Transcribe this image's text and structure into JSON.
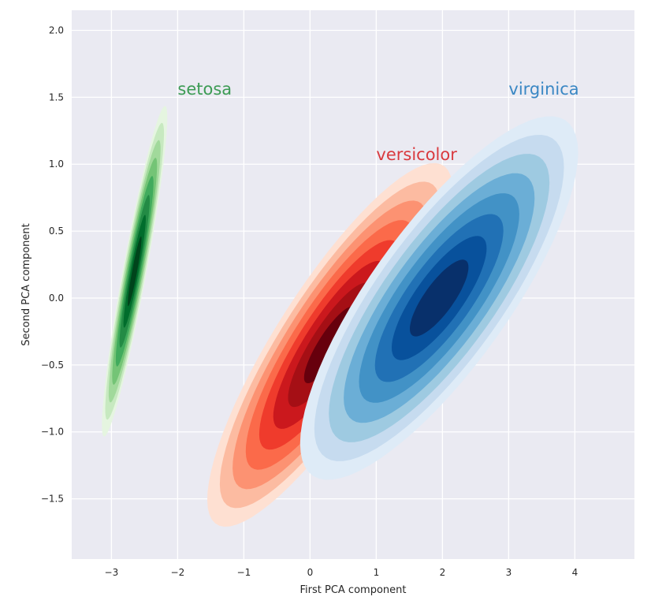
{
  "chart_data": {
    "type": "kde_contour",
    "title": "",
    "xlabel": "First PCA component",
    "ylabel": "Second PCA component",
    "xlim": [
      -3.6,
      4.9
    ],
    "ylim": [
      -1.95,
      2.15
    ],
    "xticks": [
      -3,
      -2,
      -1,
      0,
      1,
      2,
      3,
      4
    ],
    "yticks": [
      -1.5,
      -1.0,
      -0.5,
      0.0,
      0.5,
      1.0,
      1.5,
      2.0
    ],
    "xtick_labels": [
      "−3",
      "−2",
      "−1",
      "0",
      "1",
      "2",
      "3",
      "4"
    ],
    "ytick_labels": [
      "−1.5",
      "−1.0",
      "−0.5",
      "0.0",
      "0.5",
      "1.0",
      "1.5",
      "2.0"
    ],
    "grid": true,
    "background": "#eaeaf2",
    "series": [
      {
        "name": "setosa",
        "cmap": "Greens",
        "colors": [
          "#e5f5e0",
          "#c7e9c0",
          "#a1d99b",
          "#74c476",
          "#41ab5d",
          "#238b45",
          "#006d2c",
          "#00441b"
        ],
        "center": [
          -2.65,
          0.2
        ],
        "std": [
          0.2,
          0.5
        ],
        "rho": 0.93,
        "label_pos": [
          -2.0,
          1.52
        ]
      },
      {
        "name": "versicolor",
        "cmap": "Reds",
        "colors": [
          "#fee0d2",
          "#fcbba1",
          "#fc9272",
          "#fb6a4a",
          "#ef3b2c",
          "#cb181d",
          "#a50f15",
          "#67000d"
        ],
        "center": [
          0.3,
          -0.35
        ],
        "std": [
          0.75,
          0.55
        ],
        "rho": 0.85,
        "label_pos": [
          1.0,
          1.03
        ]
      },
      {
        "name": "virginica",
        "cmap": "Blues",
        "colors": [
          "#deebf7",
          "#c6dbef",
          "#9ecae1",
          "#6baed6",
          "#4292c6",
          "#2171b5",
          "#08519c",
          "#08306b"
        ],
        "center": [
          1.95,
          0.0
        ],
        "std": [
          0.85,
          0.55
        ],
        "rho": 0.8,
        "label_pos": [
          3.0,
          1.52
        ]
      }
    ],
    "annotation_colors": {
      "setosa": "#3c9b54",
      "versicolor": "#d93a3f",
      "virginica": "#3a87c4"
    }
  }
}
